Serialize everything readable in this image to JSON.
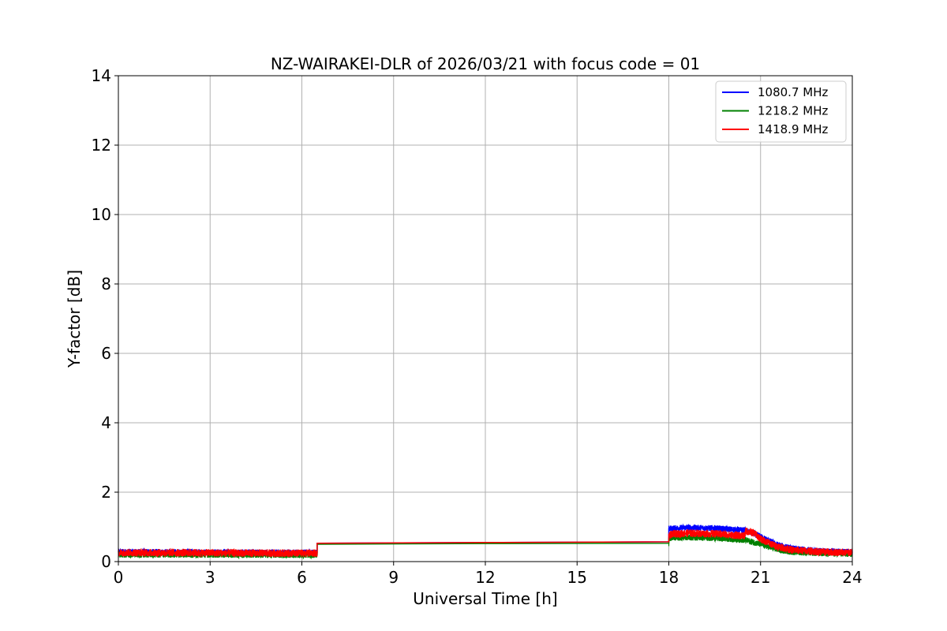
{
  "chart_data": {
    "type": "line",
    "title": "NZ-WAIRAKEI-DLR of 2026/03/21 with focus code = 01",
    "xlabel": "Universal Time [h]",
    "ylabel": "Y-factor [dB]",
    "xlim": [
      0,
      24
    ],
    "ylim": [
      0,
      14
    ],
    "xticks": [
      0,
      3,
      6,
      9,
      12,
      15,
      18,
      21,
      24
    ],
    "yticks": [
      0,
      2,
      4,
      6,
      8,
      10,
      12,
      14
    ],
    "grid": true,
    "legend_position": "top-right",
    "series": [
      {
        "name": "1080.7 MHz",
        "color": "#0000ff",
        "noise": 0.09,
        "x": [
          0,
          3,
          6,
          6.5,
          6.5,
          12,
          18,
          18,
          18.6,
          19.5,
          20.5,
          21,
          21.5,
          22,
          23,
          24
        ],
        "y": [
          0.28,
          0.27,
          0.26,
          0.26,
          0.53,
          0.55,
          0.57,
          0.95,
          0.98,
          0.96,
          0.9,
          0.72,
          0.5,
          0.38,
          0.3,
          0.28
        ]
      },
      {
        "name": "1218.2 MHz",
        "color": "#008000",
        "noise": 0.09,
        "x": [
          0,
          3,
          6,
          6.5,
          6.5,
          12,
          18,
          18,
          18.6,
          19.5,
          20.5,
          21,
          21.5,
          22,
          23,
          24
        ],
        "y": [
          0.2,
          0.2,
          0.19,
          0.19,
          0.5,
          0.52,
          0.53,
          0.68,
          0.7,
          0.68,
          0.62,
          0.5,
          0.36,
          0.28,
          0.24,
          0.22
        ]
      },
      {
        "name": "1418.9 MHz",
        "color": "#ff0000",
        "noise": 0.11,
        "x": [
          0,
          3,
          6,
          6.5,
          6.5,
          12,
          18,
          18,
          18.6,
          19.5,
          20.5,
          20.5,
          20.8,
          21,
          21.5,
          22,
          23,
          24
        ],
        "y": [
          0.26,
          0.25,
          0.24,
          0.24,
          0.53,
          0.55,
          0.57,
          0.78,
          0.82,
          0.8,
          0.74,
          0.88,
          0.82,
          0.65,
          0.45,
          0.34,
          0.28,
          0.26
        ]
      }
    ]
  }
}
